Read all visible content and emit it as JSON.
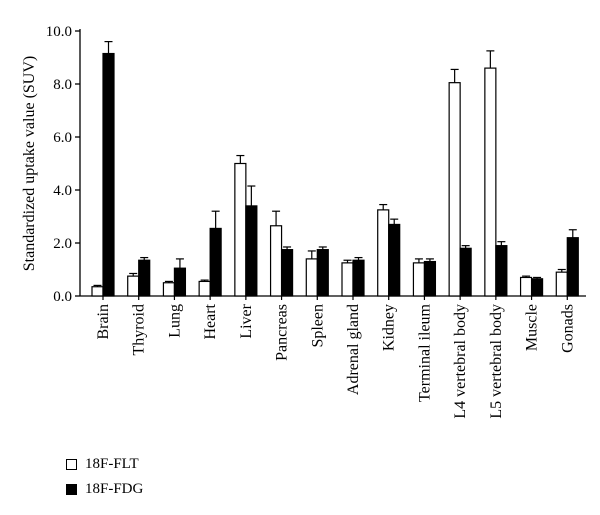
{
  "chart_data": {
    "type": "bar",
    "ylabel": "Standardized uptake value (SUV)",
    "xlabel": "",
    "ylim": [
      0,
      10
    ],
    "yticks": [
      "0.0",
      "2.0",
      "4.0",
      "6.0",
      "8.0",
      "10.0"
    ],
    "categories": [
      "Brain",
      "Thyroid",
      "Lung",
      "Heart",
      "Liver",
      "Pancreas",
      "Spleen",
      "Adrenal gland",
      "Kidney",
      "Terminal ileum",
      "L4 vertebral body",
      "L5 vertebral body",
      "Muscle",
      "Gonads"
    ],
    "series": [
      {
        "name": "18F-FLT",
        "color": "#ffffff",
        "values": [
          0.35,
          0.75,
          0.5,
          0.55,
          5.0,
          2.65,
          1.4,
          1.25,
          3.25,
          1.25,
          8.05,
          8.6,
          0.7,
          0.9
        ],
        "errors": [
          0.05,
          0.1,
          0.05,
          0.05,
          0.3,
          0.55,
          0.3,
          0.1,
          0.2,
          0.15,
          0.5,
          0.65,
          0.05,
          0.1
        ]
      },
      {
        "name": "18F-FDG",
        "color": "#000000",
        "values": [
          9.15,
          1.35,
          1.05,
          2.55,
          3.4,
          1.75,
          1.75,
          1.35,
          2.7,
          1.3,
          1.8,
          1.9,
          0.65,
          2.2
        ],
        "errors": [
          0.45,
          0.1,
          0.35,
          0.65,
          0.75,
          0.1,
          0.1,
          0.1,
          0.2,
          0.1,
          0.1,
          0.15,
          0.05,
          0.3
        ]
      }
    ],
    "legend_position": "bottom-left",
    "grid": false
  }
}
